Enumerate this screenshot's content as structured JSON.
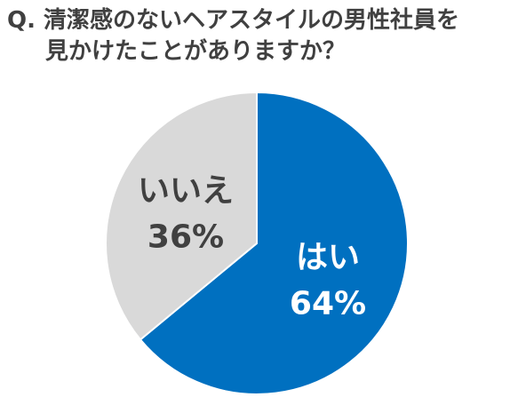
{
  "title": {
    "prefix": "Q.",
    "line1": "清潔感のないヘアスタイルの男性社員を",
    "line2": "見かけたことがありますか？"
  },
  "chart_data": {
    "type": "pie",
    "title": "Q. 清潔感のないヘアスタイルの男性社員を見かけたことがありますか？",
    "categories": [
      "はい",
      "いいえ"
    ],
    "values": [
      64,
      36
    ],
    "unit": "%",
    "colors": [
      "#0070C0",
      "#D9D9D9"
    ],
    "label_colors": [
      "#ffffff",
      "#404040"
    ],
    "percent_labels": [
      "64%",
      "36%"
    ],
    "start": "12 o'clock",
    "direction": "clockwise",
    "legend": "none"
  }
}
